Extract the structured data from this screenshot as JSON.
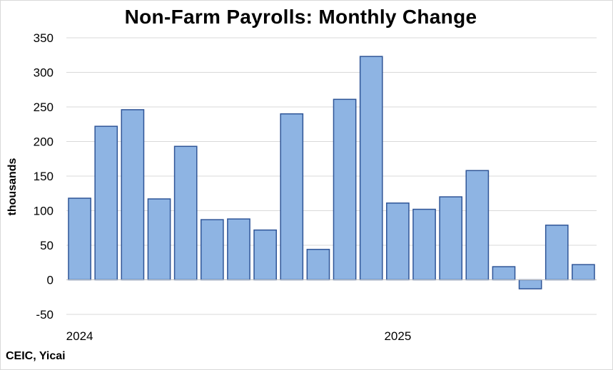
{
  "chart_data": {
    "type": "bar",
    "title": "Non-Farm Payrolls:  Monthly Change",
    "xlabel": "",
    "ylabel": "thousands",
    "source": "CEIC, Yicai",
    "categories": [
      "2024-01",
      "2024-02",
      "2024-03",
      "2024-04",
      "2024-05",
      "2024-06",
      "2024-07",
      "2024-08",
      "2024-09",
      "2024-10",
      "2024-11",
      "2024-12",
      "2025-01",
      "2025-02",
      "2025-03",
      "2025-04",
      "2025-05",
      "2025-06",
      "2025-07",
      "2025-08"
    ],
    "values": [
      118,
      222,
      246,
      117,
      193,
      87,
      88,
      72,
      240,
      44,
      261,
      323,
      111,
      102,
      120,
      158,
      19,
      -13,
      79,
      22
    ],
    "x_tick_labels": [
      {
        "label": "2024",
        "category_index": 0
      },
      {
        "label": "2025",
        "category_index": 12
      }
    ],
    "ylim": [
      -50,
      350
    ],
    "y_ticks": [
      -50,
      0,
      50,
      100,
      150,
      200,
      250,
      300,
      350
    ],
    "grid": true,
    "legend": "none",
    "colors": {
      "bar_fill": "#8eb4e3",
      "bar_stroke": "#2f5597",
      "grid": "#d9d9d9",
      "axis": "#bfbfbf"
    }
  }
}
